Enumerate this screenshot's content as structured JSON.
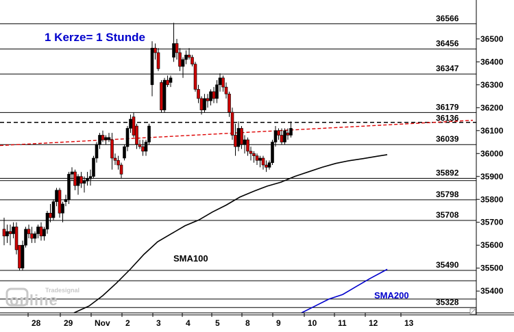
{
  "chart_data": {
    "type": "candlestick",
    "title": "1 Kerze= 1 Stunde",
    "watermark": "Tradesignal online",
    "colors": {
      "up_candle": "#000000",
      "down_candle": "#cc0000",
      "sma100": "#000000",
      "sma200": "#0000cc",
      "trendline": "#dd0000",
      "title": "#0000cc",
      "level_line": "#000000",
      "background": "#ffffff"
    },
    "ylim": [
      35305,
      36625
    ],
    "yaxis": {
      "position": "right",
      "ticks": [
        35400,
        35500,
        35600,
        35700,
        35800,
        35900,
        36000,
        36100,
        36200,
        36300,
        36400,
        36500
      ],
      "tick_labels": [
        "35400",
        "35500",
        "35600",
        "35700",
        "35800",
        "35900",
        "36000",
        "36100",
        "36200",
        "36300",
        "36400",
        "36500"
      ]
    },
    "xaxis": {
      "ticks": [
        41,
        88,
        133,
        178,
        223,
        266,
        309,
        353,
        398,
        444,
        488,
        533,
        585
      ],
      "tick_labels": [
        "28",
        "29",
        "Nov",
        "2",
        "3",
        "4",
        "5",
        "8",
        "9",
        "10",
        "11",
        "12",
        "13"
      ],
      "note": "tick entries give candle slot positions (hourly bars); one candle every 4.5 slot units"
    },
    "grid": false,
    "levels": [
      {
        "value": 36566,
        "label": "36566",
        "style": "solid"
      },
      {
        "value": 36456,
        "label": "36456",
        "style": "solid"
      },
      {
        "value": 36347,
        "label": "36347",
        "style": "solid"
      },
      {
        "value": 36179,
        "label": "36179",
        "style": "solid"
      },
      {
        "value": 36136,
        "label": "36136",
        "style": "dashed"
      },
      {
        "value": 36039,
        "label": "36039",
        "style": "solid"
      },
      {
        "value": 35892,
        "label": "35892",
        "style": "solid"
      },
      {
        "value": 35798,
        "label": "35798",
        "style": "solid"
      },
      {
        "value": 35708,
        "label": "35708",
        "style": "solid"
      },
      {
        "value": 35490,
        "label": "35490",
        "style": "solid"
      },
      {
        "value": 35328,
        "label": "35328",
        "style": "solid"
      }
    ],
    "extra_lines": [
      35882,
      35445,
      35365
    ],
    "series": [
      {
        "name": "Hourly candles",
        "ohlc": [
          [
            35670,
            35720,
            35600,
            35640
          ],
          [
            35640,
            35690,
            35610,
            35660
          ],
          [
            35660,
            35690,
            35600,
            35650
          ],
          [
            35650,
            35700,
            35630,
            35680
          ],
          [
            35680,
            35700,
            35560,
            35580
          ],
          [
            35600,
            35600,
            35490,
            35500
          ],
          [
            35500,
            35620,
            35490,
            35600
          ],
          [
            35600,
            35680,
            35590,
            35670
          ],
          [
            35670,
            35690,
            35630,
            35650
          ],
          [
            35650,
            35680,
            35610,
            35630
          ],
          [
            35630,
            35660,
            35610,
            35650
          ],
          [
            35650,
            35690,
            35630,
            35680
          ],
          [
            35680,
            35700,
            35620,
            35640
          ],
          [
            35640,
            35680,
            35620,
            35670
          ],
          [
            35670,
            35750,
            35650,
            35740
          ],
          [
            35740,
            35780,
            35700,
            35720
          ],
          [
            35720,
            35800,
            35710,
            35790
          ],
          [
            35790,
            35850,
            35770,
            35840
          ],
          [
            35840,
            35850,
            35720,
            35740
          ],
          [
            35740,
            35790,
            35700,
            35780
          ],
          [
            35790,
            35820,
            35770,
            35800
          ],
          [
            35800,
            35920,
            35780,
            35910
          ],
          [
            35910,
            35940,
            35880,
            35920
          ],
          [
            35920,
            35930,
            35840,
            35860
          ],
          [
            35860,
            35910,
            35820,
            35900
          ],
          [
            35900,
            35920,
            35850,
            35870
          ],
          [
            35870,
            35900,
            35830,
            35880
          ],
          [
            35880,
            35920,
            35860,
            35890
          ],
          [
            35890,
            35930,
            35860,
            35900
          ],
          [
            35900,
            35990,
            35890,
            35980
          ],
          [
            35980,
            36050,
            35960,
            36040
          ],
          [
            36040,
            36090,
            36020,
            36080
          ],
          [
            36080,
            36100,
            36050,
            36060
          ],
          [
            36060,
            36080,
            36040,
            36070
          ],
          [
            36060,
            36090,
            36050,
            36070
          ],
          [
            36060,
            36090,
            35930,
            35980
          ],
          [
            35980,
            36000,
            35950,
            35970
          ],
          [
            35970,
            35990,
            35930,
            35950
          ],
          [
            35950,
            35960,
            35890,
            35910
          ],
          [
            35980,
            36040,
            35970,
            36030
          ],
          [
            36030,
            36120,
            36010,
            36110
          ],
          [
            36110,
            36170,
            36090,
            36150
          ],
          [
            36160,
            36180,
            36070,
            36080
          ],
          [
            36120,
            36130,
            36020,
            36040
          ],
          [
            36040,
            36060,
            36020,
            36030
          ],
          [
            36030,
            36060,
            35990,
            36010
          ],
          [
            36010,
            36060,
            35990,
            36050
          ],
          [
            36050,
            36130,
            36040,
            36120
          ],
          [
            36300,
            36490,
            36250,
            36460
          ],
          [
            36460,
            36480,
            36410,
            36440
          ],
          [
            36440,
            36460,
            36360,
            36370
          ],
          [
            36310,
            36320,
            36180,
            36190
          ],
          [
            36190,
            36330,
            36180,
            36320
          ],
          [
            36320,
            36340,
            36290,
            36300
          ],
          [
            36310,
            36340,
            36290,
            36330
          ],
          [
            36420,
            36570,
            36400,
            36480
          ],
          [
            36480,
            36500,
            36410,
            36440
          ],
          [
            36440,
            36460,
            36360,
            36380
          ],
          [
            36380,
            36420,
            36330,
            36410
          ],
          [
            36410,
            36450,
            36390,
            36430
          ],
          [
            36430,
            36460,
            36410,
            36420
          ],
          [
            36420,
            36430,
            36380,
            36390
          ],
          [
            36390,
            36400,
            36270,
            36280
          ],
          [
            36280,
            36300,
            36220,
            36240
          ],
          [
            36240,
            36250,
            36170,
            36190
          ],
          [
            36190,
            36260,
            36180,
            36240
          ],
          [
            36240,
            36260,
            36200,
            36230
          ],
          [
            36230,
            36280,
            36210,
            36270
          ],
          [
            36270,
            36290,
            36220,
            36240
          ],
          [
            36240,
            36320,
            36220,
            36300
          ],
          [
            36300,
            36350,
            36270,
            36330
          ],
          [
            36330,
            36340,
            36270,
            36290
          ],
          [
            36290,
            36310,
            36240,
            36260
          ],
          [
            36260,
            36270,
            36160,
            36180
          ],
          [
            36180,
            36200,
            36060,
            36080
          ],
          [
            36080,
            36130,
            35990,
            36030
          ],
          [
            36030,
            36140,
            36010,
            36110
          ],
          [
            36110,
            36120,
            36020,
            36040
          ],
          [
            36040,
            36080,
            36000,
            36060
          ],
          [
            36060,
            36070,
            35990,
            36010
          ],
          [
            36010,
            36030,
            35970,
            36000
          ],
          [
            36000,
            36010,
            35960,
            35990
          ],
          [
            35990,
            36000,
            35950,
            35970
          ],
          [
            35970,
            35990,
            35940,
            35980
          ],
          [
            35980,
            35990,
            35930,
            35950
          ],
          [
            35950,
            35970,
            35920,
            35940
          ],
          [
            35940,
            35970,
            35930,
            35960
          ],
          [
            35960,
            36060,
            35950,
            36050
          ],
          [
            36050,
            36120,
            36030,
            36100
          ],
          [
            36100,
            36110,
            36060,
            36080
          ],
          [
            36080,
            36110,
            36040,
            36050
          ],
          [
            36050,
            36110,
            36040,
            36100
          ],
          [
            36090,
            36110,
            36060,
            36080
          ],
          [
            36080,
            36140,
            36070,
            36110
          ]
        ]
      },
      {
        "name": "SMA100",
        "label": "SMA100",
        "x": [
          108,
          130,
          150,
          170,
          190,
          210,
          230,
          250,
          270,
          290,
          310,
          330,
          350,
          370,
          390,
          410,
          430,
          450,
          470,
          490,
          510,
          530,
          550,
          565
        ],
        "values": [
          35305,
          35335,
          35380,
          35435,
          35495,
          35560,
          35615,
          35650,
          35685,
          35710,
          35745,
          35775,
          35810,
          35835,
          35858,
          35875,
          35900,
          35920,
          35940,
          35957,
          35969,
          35978,
          35988,
          35995
        ]
      },
      {
        "name": "SMA200",
        "label": "SMA200",
        "x": [
          440,
          460,
          480,
          500,
          520,
          540,
          565
        ],
        "values": [
          35305,
          35335,
          35365,
          35385,
          35420,
          35455,
          35495
        ]
      },
      {
        "name": "Trendline",
        "x": [
          0,
          690
        ],
        "values": [
          36035,
          36145
        ]
      }
    ]
  }
}
